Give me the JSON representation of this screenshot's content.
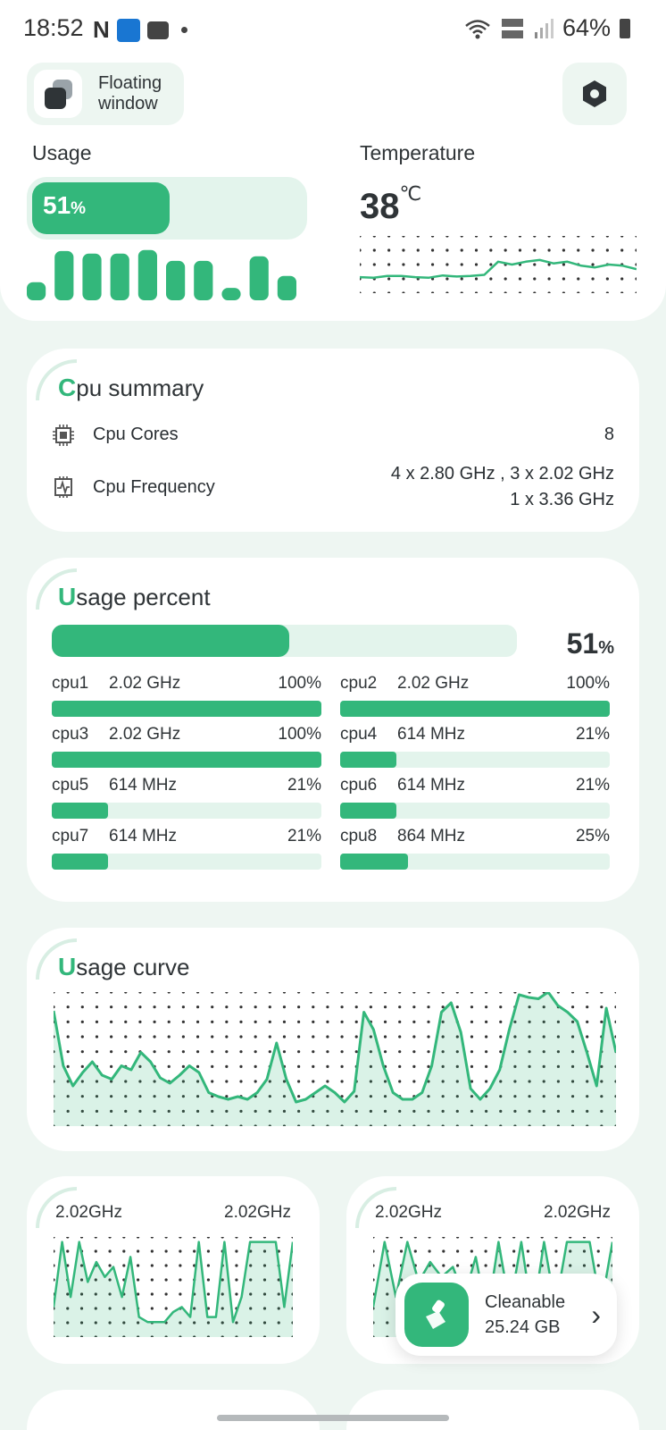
{
  "status_bar": {
    "time": "18:52",
    "left_icons": [
      "netflix-n-icon",
      "app-plus-icon",
      "message-icon",
      "dot-icon"
    ],
    "right_icons": [
      "wifi-6-icon",
      "volte-lte-icon",
      "signal-icon"
    ],
    "battery": "64%"
  },
  "header": {
    "floating_window_label": "Floating\nwindow"
  },
  "usage": {
    "title": "Usage",
    "percent": 51,
    "percent_value": "51",
    "percent_unit": "%",
    "history_levels": [
      0.35,
      0.95,
      0.9,
      0.9,
      0.97,
      0.76,
      0.76,
      0.24,
      0.85,
      0.47
    ]
  },
  "temperature": {
    "title": "Temperature",
    "value": "38",
    "unit": "℃",
    "trend": [
      0.28,
      0.27,
      0.3,
      0.3,
      0.28,
      0.27,
      0.31,
      0.29,
      0.3,
      0.32,
      0.55,
      0.5,
      0.55,
      0.58,
      0.52,
      0.55,
      0.48,
      0.45,
      0.5,
      0.48,
      0.42
    ]
  },
  "cpu_summary": {
    "title_first": "C",
    "title_rest": "pu summary",
    "cores_label": "Cpu Cores",
    "cores_value": "8",
    "frequency_label": "Cpu Frequency",
    "frequency_value": "4 x 2.80 GHz , 3 x 2.02 GHz\n1 x 3.36 GHz"
  },
  "usage_percent": {
    "title_first": "U",
    "title_rest": "sage percent",
    "total_percent": 51,
    "total_value": "51",
    "total_unit": "%",
    "cores": [
      {
        "name": "cpu1",
        "freq": "2.02 GHz",
        "percent_label": "100%",
        "percent": 100
      },
      {
        "name": "cpu2",
        "freq": "2.02 GHz",
        "percent_label": "100%",
        "percent": 100
      },
      {
        "name": "cpu3",
        "freq": "2.02 GHz",
        "percent_label": "100%",
        "percent": 100
      },
      {
        "name": "cpu4",
        "freq": "614 MHz",
        "percent_label": "21%",
        "percent": 21
      },
      {
        "name": "cpu5",
        "freq": "614 MHz",
        "percent_label": "21%",
        "percent": 21
      },
      {
        "name": "cpu6",
        "freq": "614 MHz",
        "percent_label": "21%",
        "percent": 21
      },
      {
        "name": "cpu7",
        "freq": "614 MHz",
        "percent_label": "21%",
        "percent": 21
      },
      {
        "name": "cpu8",
        "freq": "864 MHz",
        "percent_label": "25%",
        "percent": 25
      }
    ]
  },
  "usage_curve": {
    "title_first": "U",
    "title_rest": "sage curve",
    "series": [
      0.86,
      0.45,
      0.3,
      0.4,
      0.48,
      0.38,
      0.35,
      0.45,
      0.42,
      0.55,
      0.48,
      0.36,
      0.32,
      0.38,
      0.45,
      0.4,
      0.25,
      0.22,
      0.2,
      0.22,
      0.2,
      0.25,
      0.35,
      0.62,
      0.35,
      0.18,
      0.2,
      0.25,
      0.3,
      0.25,
      0.18,
      0.26,
      0.85,
      0.72,
      0.45,
      0.25,
      0.2,
      0.2,
      0.25,
      0.45,
      0.85,
      0.92,
      0.7,
      0.28,
      0.2,
      0.28,
      0.42,
      0.72,
      0.98,
      0.96,
      0.95,
      1.0,
      0.9,
      0.85,
      0.78,
      0.55,
      0.3,
      0.88,
      0.55
    ]
  },
  "core_graphs": [
    {
      "freq_left": "2.02GHz",
      "freq_right": "2.02GHz",
      "series": [
        0.3,
        0.95,
        0.4,
        0.95,
        0.55,
        0.75,
        0.6,
        0.7,
        0.4,
        0.8,
        0.2,
        0.15,
        0.15,
        0.15,
        0.25,
        0.3,
        0.2,
        0.95,
        0.2,
        0.2,
        0.95,
        0.15,
        0.4,
        0.95,
        0.95,
        0.95,
        0.95,
        0.3,
        0.95
      ]
    },
    {
      "freq_left": "2.02GHz",
      "freq_right": "2.02GHz",
      "series": [
        0.3,
        0.95,
        0.4,
        0.95,
        0.55,
        0.75,
        0.6,
        0.7,
        0.4,
        0.8,
        0.2,
        0.95,
        0.3,
        0.95,
        0.2,
        0.95,
        0.3,
        0.95,
        0.95,
        0.95,
        0.3,
        0.95
      ]
    }
  ],
  "cleanable": {
    "label": "Cleanable\n25.24 GB"
  }
}
